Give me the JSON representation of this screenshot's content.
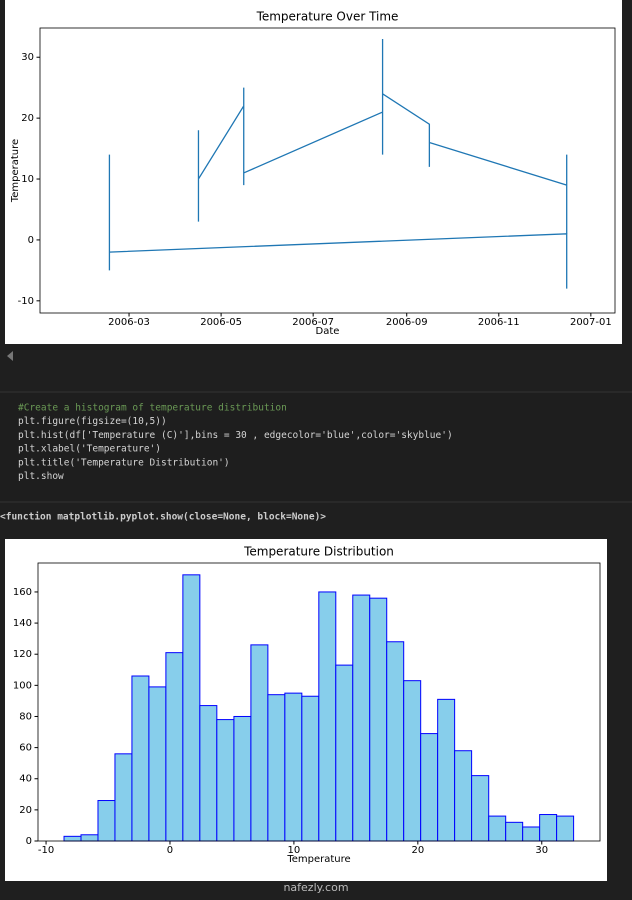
{
  "chart_data": [
    {
      "type": "line",
      "title": "Temperature Over Time",
      "xlabel": "Date",
      "ylabel": "Temperature",
      "color": "#1f77b4",
      "x": [
        "2006-04",
        "2006-04",
        "2006-04",
        "2006-04",
        "2006-04",
        "2006-04",
        "2006-04",
        "2006-05",
        "2006-05",
        "2006-05",
        "2006-05",
        "2006-05",
        "2006-05",
        "2006-08",
        "2006-08",
        "2006-08",
        "2006-08",
        "2006-08",
        "2006-08",
        "2006-08",
        "2006-08",
        "2006-09",
        "2006-09",
        "2006-09",
        "2006-12",
        "2006-12",
        "2006-12",
        "2006-12",
        "2006-12",
        "2006-12",
        "2006-12",
        "2006-12",
        "2006-12",
        "2006-02",
        "2006-02",
        "2006-02",
        "2006-02",
        "2006-02",
        "2006-02",
        "2006-02",
        "2006-02"
      ],
      "values": [
        9,
        18,
        3,
        14,
        6,
        16,
        10,
        22,
        9,
        25,
        12,
        19,
        11,
        21,
        32,
        14,
        28,
        17,
        33,
        15,
        24,
        19,
        12,
        16,
        9,
        3,
        14,
        -2,
        6,
        -8,
        2,
        -4,
        1,
        -2,
        -4,
        2,
        -5,
        6,
        14,
        8,
        -2
      ],
      "xlim": [
        "2006-01-01",
        "2007-01-17"
      ],
      "xticks": [
        "2006-03",
        "2006-05",
        "2006-07",
        "2006-09",
        "2006-11",
        "2007-01"
      ],
      "ylim": [
        -12,
        34.8
      ],
      "yticks": [
        -10,
        0,
        10,
        20,
        30
      ]
    },
    {
      "type": "histogram",
      "title": "Temperature Distribution",
      "xlabel": "Temperature",
      "color": "#87ceeb",
      "edgecolor": "#0000ff",
      "bins": [
        -8.55,
        -7.18,
        -5.81,
        -4.44,
        -3.07,
        -1.7,
        -0.33,
        1.04,
        2.41,
        3.78,
        5.16,
        6.53,
        7.9,
        9.27,
        10.64,
        12.01,
        13.38,
        14.75,
        16.12,
        17.49,
        18.86,
        20.23,
        21.6,
        22.97,
        24.34,
        25.72,
        27.09,
        28.46,
        29.83,
        31.2,
        32.57
      ],
      "values": [
        3,
        4,
        26,
        56,
        106,
        99,
        121,
        171,
        87,
        78,
        80,
        126,
        94,
        95,
        93,
        160,
        113,
        158,
        156,
        128,
        103,
        69,
        91,
        58,
        42,
        16,
        12,
        9,
        17,
        16
      ],
      "xlim": [
        -10.65,
        34.7
      ],
      "xticks": [
        -10,
        0,
        10,
        20,
        30
      ],
      "ylim": [
        0,
        178.6
      ],
      "yticks": [
        0,
        20,
        40,
        60,
        80,
        100,
        120,
        140,
        160
      ]
    }
  ],
  "code_cell": {
    "lines": [
      "#Create a histogram of temperature distribution",
      "plt.figure(figsize=(10,5))",
      "plt.hist(df['Temperature (C)'],bins = 30 , edgecolor='blue',color='skyblue')",
      "plt.xlabel('Temperature')",
      "plt.title('Temperature Distribution')",
      "plt.show"
    ]
  },
  "output": "<function matplotlib.pyplot.show(close=None, block=None)>",
  "watermark": "nafezly.com"
}
